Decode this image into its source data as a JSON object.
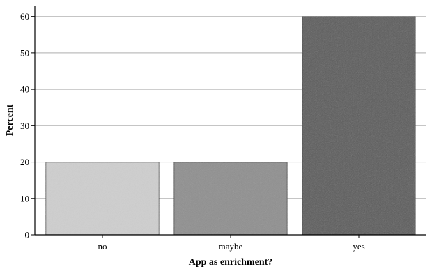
{
  "chart_data": {
    "type": "bar",
    "title": "",
    "xlabel": "App as enrichment?",
    "ylabel": "Percent",
    "categories": [
      "no",
      "maybe",
      "yes"
    ],
    "values": [
      20,
      20,
      60
    ],
    "ylim": [
      0,
      63
    ],
    "yticks": [
      "0",
      "10",
      "20",
      "30",
      "40",
      "50",
      "60"
    ],
    "grid": "horizontal",
    "legend": "none",
    "bar_colors": [
      "#cfcfcf",
      "#8f8f8f",
      "#5c5c5c"
    ],
    "bar_edge_color": "#1a1a1a",
    "gridline_color": "#bdbdbd"
  }
}
